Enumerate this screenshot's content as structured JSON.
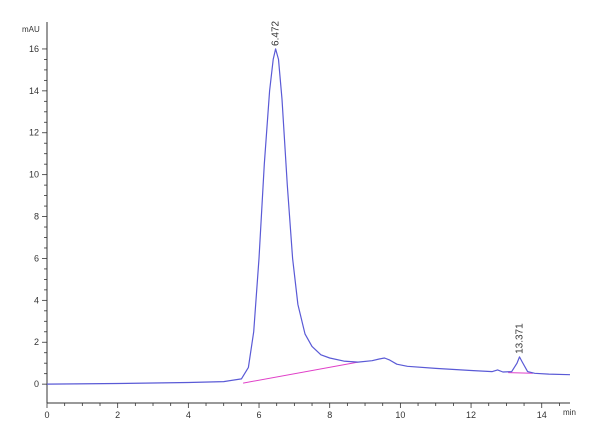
{
  "chart_data": {
    "type": "line",
    "title": "",
    "ylabel": "mAU",
    "xlabel": "min",
    "xlim": [
      0,
      14.8
    ],
    "ylim": [
      -0.9,
      17
    ],
    "x_ticks": [
      0,
      2,
      4,
      6,
      8,
      10,
      12,
      14
    ],
    "y_ticks": [
      0,
      2,
      4,
      6,
      8,
      10,
      12,
      14,
      16
    ],
    "grid": false,
    "colors": {
      "signal": "#5a5ad6",
      "baseline": "#e040c8",
      "axis": "#333333"
    },
    "series": [
      {
        "role": "signal",
        "x": [
          0,
          2,
          4,
          5.0,
          5.5,
          5.7,
          5.85,
          6.0,
          6.15,
          6.3,
          6.4,
          6.47,
          6.55,
          6.65,
          6.8,
          6.95,
          7.1,
          7.3,
          7.5,
          7.75,
          8.0,
          8.4,
          8.8,
          9.2,
          9.4,
          9.55,
          9.7,
          9.9,
          10.2,
          11,
          12,
          12.6,
          12.75,
          12.9,
          13.15,
          13.3,
          13.37,
          13.45,
          13.6,
          13.8,
          14.2,
          14.8
        ],
        "y": [
          0.0,
          0.03,
          0.08,
          0.12,
          0.25,
          0.8,
          2.5,
          6.0,
          10.5,
          14.0,
          15.5,
          16.0,
          15.5,
          13.6,
          9.5,
          6.0,
          3.8,
          2.4,
          1.8,
          1.4,
          1.25,
          1.1,
          1.05,
          1.12,
          1.2,
          1.25,
          1.15,
          0.95,
          0.85,
          0.75,
          0.65,
          0.6,
          0.68,
          0.58,
          0.6,
          1.0,
          1.3,
          1.05,
          0.6,
          0.52,
          0.48,
          0.45
        ]
      },
      {
        "role": "baseline",
        "x": [
          5.55,
          8.8
        ],
        "y": [
          0.05,
          1.05
        ]
      },
      {
        "role": "baseline",
        "x": [
          13.05,
          13.75
        ],
        "y": [
          0.55,
          0.52
        ]
      }
    ],
    "peaks": [
      {
        "rt": 6.472,
        "label": "6.472",
        "height": 16.0
      },
      {
        "rt": 13.371,
        "label": "13.371",
        "height": 1.3
      }
    ]
  }
}
